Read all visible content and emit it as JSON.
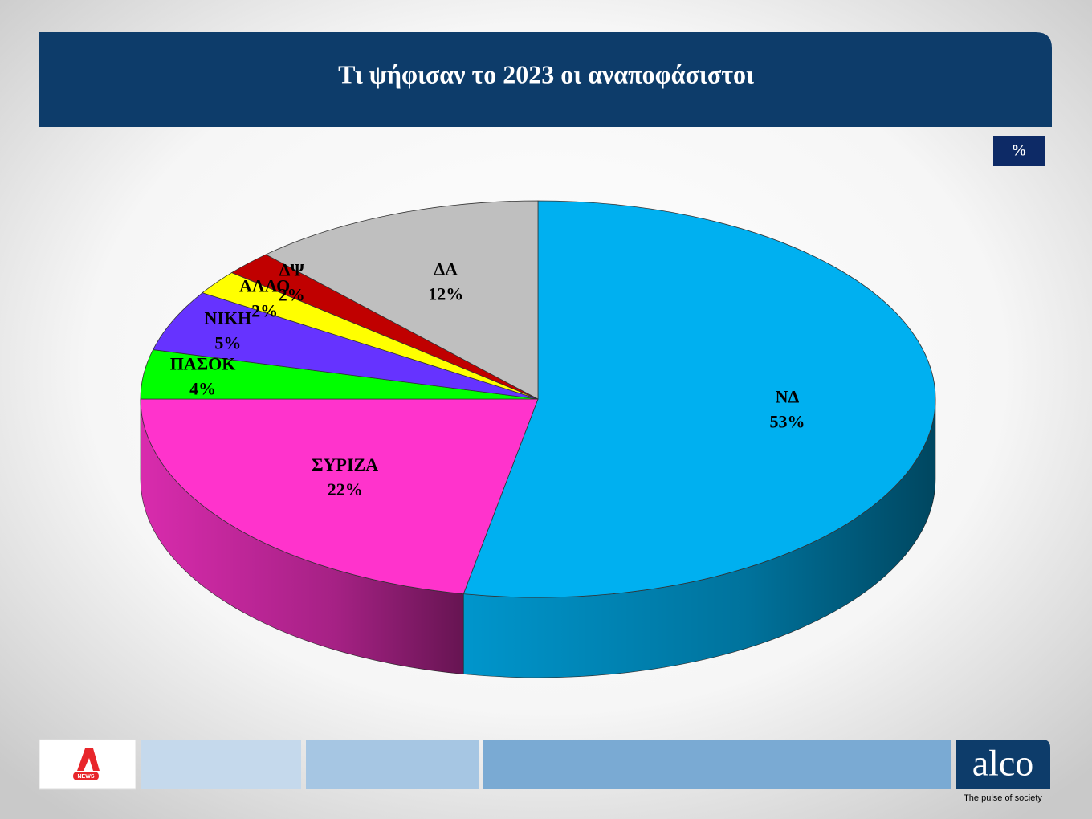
{
  "chart_data": {
    "type": "pie",
    "title": "Τι ψήφισαν το 2023 οι αναποφάσιστοι",
    "categories": [
      "ΝΔ",
      "ΣΥΡΙΖΑ",
      "ΠΑΣΟΚ",
      "ΝΙΚΗ",
      "ΑΛΛΟ",
      "ΔΨ",
      "ΔΑ"
    ],
    "values": [
      53,
      22,
      4,
      5,
      2,
      2,
      12
    ],
    "value_labels": [
      "53%",
      "22%",
      "4%",
      "5%",
      "2%",
      "2%",
      "12%"
    ],
    "colors": [
      "#00b0f0",
      "#ff33cc",
      "#00ff00",
      "#6633ff",
      "#ffff00",
      "#c00000",
      "#bfbfbf"
    ]
  },
  "badge": "%",
  "footer": {
    "logo": "NEWS",
    "brand": "alco",
    "tagline": "The pulse of society"
  }
}
